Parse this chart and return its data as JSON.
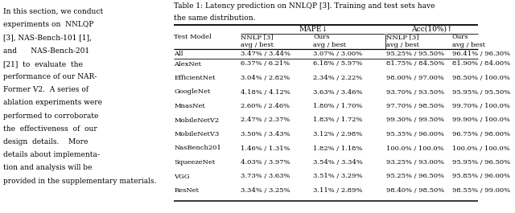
{
  "left_text_lines": [
    "In this section, we conduct",
    "experiments on  NNLQP",
    "[3], NAS-Bench-101 [1],",
    "and      NAS-Bench-201",
    "[21]  to  evaluate  the",
    "performance of our NAR-",
    "Former V2.  A series of",
    "ablation experiments were",
    "performed to corroborate",
    "the  effectiveness  of  our",
    "design  details.    More",
    "details about implementa-",
    "tion and analysis will be",
    "provided in the supplementary materials."
  ],
  "title_line1": "Table 1: Latency prediction on NNLQP [3]. Training and test sets have",
  "title_line2": "the same distribution.",
  "col_header_row1": [
    "",
    "MAPE↓",
    "",
    "Acc(10%)↑",
    ""
  ],
  "col_header_row2": [
    "Test Model",
    "NNLP [3]",
    "Ours",
    "NNLP [3]",
    "Ours"
  ],
  "col_header_row3": [
    "",
    "avg / best",
    "avg / best",
    "avg / best",
    "avg / best"
  ],
  "rows": [
    [
      "All",
      "3.47% / 3.44%",
      "3.07% / 3.00%",
      "95.25% / 95.50%",
      "96.41% / 96.30%"
    ],
    [
      "AlexNet",
      "6.37% / 6.21%",
      "6.18% / 5.97%",
      "81.75% / 84.50%",
      "81.90% / 84.00%"
    ],
    [
      "EfficientNet",
      "3.04% / 2.82%",
      "2.34% / 2.22%",
      "98.00% / 97.00%",
      "98.50% / 100.0%"
    ],
    [
      "GoogleNet",
      "4.18% / 4.12%",
      "3.63% / 3.46%",
      "93.70% / 93.50%",
      "95.95% / 95.50%"
    ],
    [
      "MnasNet",
      "2.60% / 2.46%",
      "1.80% / 1.70%",
      "97.70% / 98.50%",
      "99.70% / 100.0%"
    ],
    [
      "MobileNetV2",
      "2.47% / 2.37%",
      "1.83% / 1.72%",
      "99.30% / 99.50%",
      "99.90% / 100.0%"
    ],
    [
      "MobileNetV3",
      "3.50% / 3.43%",
      "3.12% / 2.98%",
      "95.35% / 96.00%",
      "96.75% / 98.00%"
    ],
    [
      "NasBench201",
      "1.46% / 1.31%",
      "1.82% / 1.18%",
      "100.0% / 100.0%",
      "100.0% / 100.0%"
    ],
    [
      "SqueezeNet",
      "4.03% / 3.97%",
      "3.54% / 3.34%",
      "93.25% / 93.00%",
      "95.95% / 96.50%"
    ],
    [
      "VGG",
      "3.73% / 3.63%",
      "3.51% / 3.29%",
      "95.25% / 96.50%",
      "95.85% / 96.00%"
    ],
    [
      "ResNet",
      "3.34% / 3.25%",
      "3.11% / 2.89%",
      "98.40% / 98.50%",
      "98.55% / 99.00%"
    ]
  ]
}
